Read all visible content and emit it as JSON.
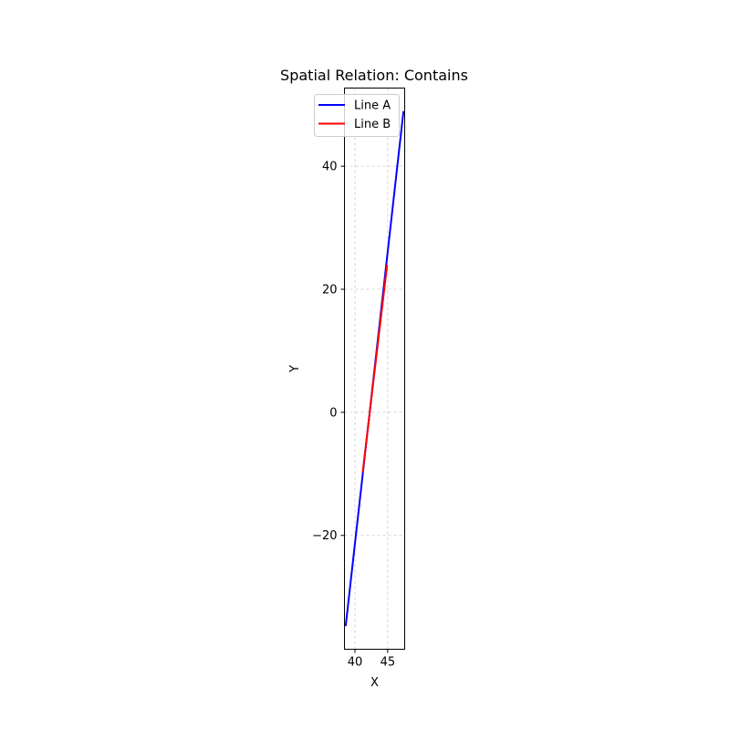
{
  "chart_data": {
    "type": "line",
    "title": "Spatial Relation: Contains",
    "xlabel": "X",
    "ylabel": "Y",
    "xlim": [
      38.4,
      47.6
    ],
    "ylim": [
      -38.5,
      52.7
    ],
    "xticks": [
      40,
      45
    ],
    "yticks": [
      -20,
      0,
      20,
      40
    ],
    "ytick_labels": [
      "−20",
      "0",
      "20",
      "40"
    ],
    "grid": true,
    "legend_position": "upper-right",
    "series": [
      {
        "name": "Line A",
        "color": "#0000ff",
        "x": [
          38.6,
          47.4
        ],
        "y": [
          -34.6,
          48.8
        ]
      },
      {
        "name": "Line B",
        "color": "#ff0000",
        "x": [
          41.2,
          44.9
        ],
        "y": [
          -9.6,
          23.8
        ]
      }
    ]
  }
}
